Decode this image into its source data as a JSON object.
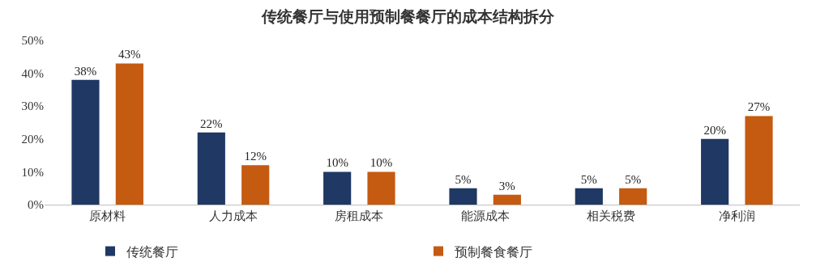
{
  "chart_data": {
    "type": "bar",
    "title": "传统餐厅与使用预制餐餐厅的成本结构拆分",
    "categories": [
      "原材料",
      "人力成本",
      "房租成本",
      "能源成本",
      "相关税费",
      "净利润"
    ],
    "series": [
      {
        "name": "传统餐厅",
        "color": "#1f3864",
        "values": [
          38,
          22,
          10,
          5,
          5,
          20
        ],
        "value_labels": [
          "38%",
          "22%",
          "10%",
          "5%",
          "5%",
          "20%"
        ]
      },
      {
        "name": "预制餐食餐厅",
        "color": "#c55a11",
        "values": [
          43,
          12,
          10,
          3,
          5,
          27
        ],
        "value_labels": [
          "43%",
          "12%",
          "10%",
          "3%",
          "5%",
          "27%"
        ]
      }
    ],
    "ylim": [
      0,
      50
    ],
    "yticks": [
      {
        "value": 0,
        "label": "0%"
      },
      {
        "value": 10,
        "label": "10%"
      },
      {
        "value": 20,
        "label": "20%"
      },
      {
        "value": 30,
        "label": "30%"
      },
      {
        "value": 40,
        "label": "40%"
      },
      {
        "value": 50,
        "label": "50%"
      }
    ],
    "grid": false,
    "legend": "bottom"
  }
}
